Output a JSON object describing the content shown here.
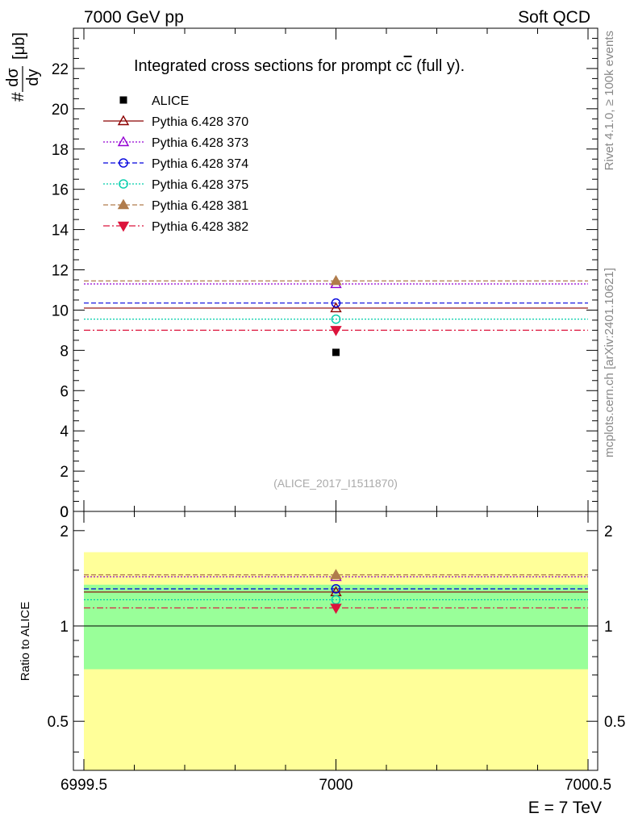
{
  "header": {
    "left": "7000 GeV pp",
    "right": "Soft QCD"
  },
  "side_labels": {
    "rivet": "Rivet 4.1.0, ≥ 100k events",
    "mcplots": "mcplots.cern.ch [arXiv:2401.10621]"
  },
  "chart_data": [
    {
      "type": "scatter",
      "panel": "main",
      "title": "Integrated cross sections for prompt c",
      "title_cbar": "c",
      "title_suffix": " (full y).",
      "ylabel": "#dσ/dy [μb]",
      "ylabel_prefix": "#",
      "ylabel_frac_num": "dσ",
      "ylabel_frac_den": "dy",
      "ylabel_units": "[μb]",
      "xlim": [
        6999.5,
        7000.5
      ],
      "ylim": [
        0,
        24
      ],
      "yticks_major": [
        0,
        2,
        4,
        6,
        8,
        10,
        12,
        14,
        16,
        18,
        20,
        22
      ],
      "watermark": "(ALICE_2017_I1511870)",
      "legend_position": "top-left",
      "series": [
        {
          "name": "ALICE",
          "x": 7000,
          "y": 7.9,
          "marker": "square-filled",
          "color": "#000000",
          "line": "none"
        },
        {
          "name": "Pythia 6.428 370",
          "y": 10.1,
          "marker": "triangle-up-open",
          "color": "#8b0000",
          "line": "solid"
        },
        {
          "name": "Pythia 6.428 373",
          "y": 11.3,
          "marker": "triangle-up-open",
          "color": "#9400d3",
          "line": "dotted"
        },
        {
          "name": "Pythia 6.428 374",
          "y": 10.35,
          "marker": "circle-open",
          "color": "#0000dd",
          "line": "dashed"
        },
        {
          "name": "Pythia 6.428 375",
          "y": 9.55,
          "marker": "circle-open",
          "color": "#00cdaa",
          "line": "dotted"
        },
        {
          "name": "Pythia 6.428 381",
          "y": 11.45,
          "marker": "triangle-up-filled",
          "color": "#b07c4c",
          "line": "dashed"
        },
        {
          "name": "Pythia 6.428 382",
          "y": 9.0,
          "marker": "triangle-down-filled",
          "color": "#dc143c",
          "line": "dashdot"
        }
      ]
    },
    {
      "type": "scatter",
      "panel": "ratio",
      "ylabel": "Ratio to ALICE",
      "xlabel": "E = 7 TeV",
      "xlim": [
        6999.5,
        7000.5
      ],
      "ylim": [
        0.35,
        2.3
      ],
      "yticks_major": [
        0.5,
        1,
        2
      ],
      "ytick_labels": [
        "0.5",
        "1",
        "2"
      ],
      "xticks_major": [
        6999.5,
        7000,
        7000.5
      ],
      "xtick_labels": [
        "6999.5",
        "7000",
        "7000.5"
      ],
      "bands": [
        {
          "name": "total-uncertainty",
          "low": 0.35,
          "high": 1.71,
          "color": "#ffff99"
        },
        {
          "name": "stat-uncertainty",
          "low": 0.73,
          "high": 1.35,
          "color": "#99ff99"
        }
      ],
      "reference": 1.0,
      "series": [
        {
          "name": "Pythia 6.428 370",
          "y": 1.28,
          "marker": "triangle-up-open",
          "color": "#8b0000",
          "line": "solid"
        },
        {
          "name": "Pythia 6.428 373",
          "y": 1.43,
          "marker": "triangle-up-open",
          "color": "#9400d3",
          "line": "dotted"
        },
        {
          "name": "Pythia 6.428 374",
          "y": 1.31,
          "marker": "circle-open",
          "color": "#0000dd",
          "line": "dashed"
        },
        {
          "name": "Pythia 6.428 375",
          "y": 1.21,
          "marker": "circle-open",
          "color": "#00cdaa",
          "line": "dotted"
        },
        {
          "name": "Pythia 6.428 381",
          "y": 1.45,
          "marker": "triangle-up-filled",
          "color": "#b07c4c",
          "line": "dashed"
        },
        {
          "name": "Pythia 6.428 382",
          "y": 1.14,
          "marker": "triangle-down-filled",
          "color": "#dc143c",
          "line": "dashdot"
        }
      ]
    }
  ]
}
